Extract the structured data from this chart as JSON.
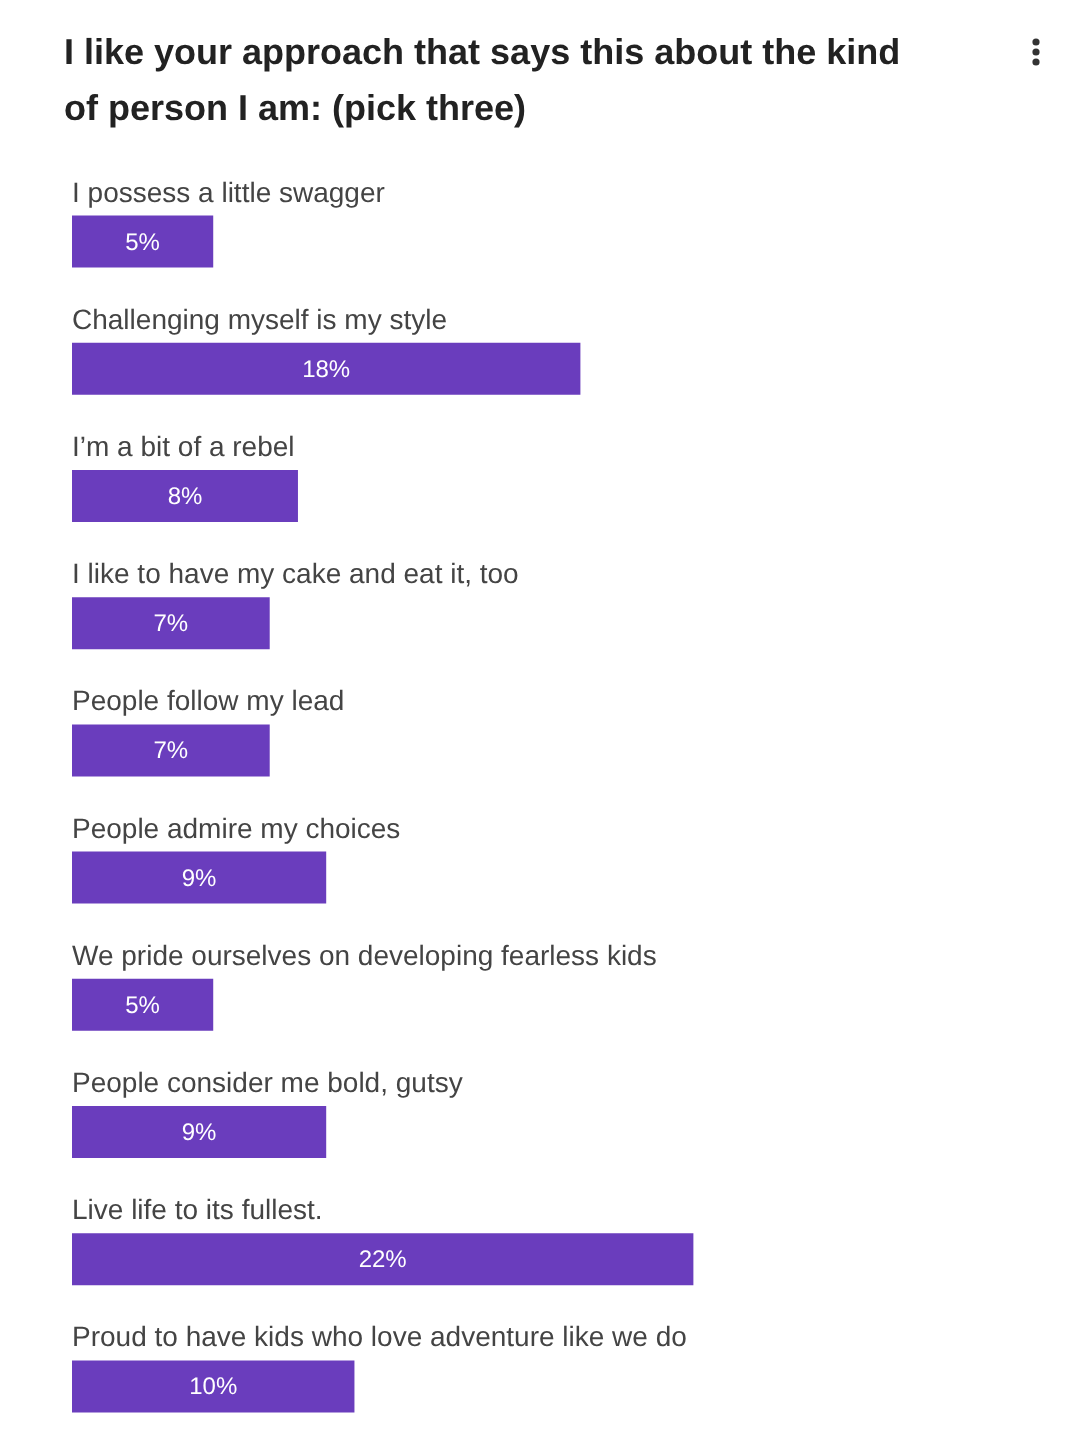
{
  "chart_data": {
    "type": "bar",
    "orientation": "horizontal",
    "title": "I like your approach that says this about the kind of person I am: (pick three)",
    "categories": [
      "I possess a little swagger",
      "Challenging myself is my style",
      "I’m a bit of a rebel",
      "I like to have my cake and eat it, too",
      "People follow my lead",
      "People admire my choices",
      "We pride ourselves on developing fearless kids",
      "People consider me bold, gutsy",
      "Live life to its fullest.",
      "Proud to have kids who love adventure like we do"
    ],
    "values": [
      5,
      18,
      8,
      7,
      7,
      9,
      5,
      9,
      22,
      10
    ],
    "value_labels": [
      "5%",
      "18%",
      "8%",
      "7%",
      "7%",
      "9%",
      "5%",
      "9%",
      "22%",
      "10%"
    ],
    "color": "#6a3dbd"
  }
}
